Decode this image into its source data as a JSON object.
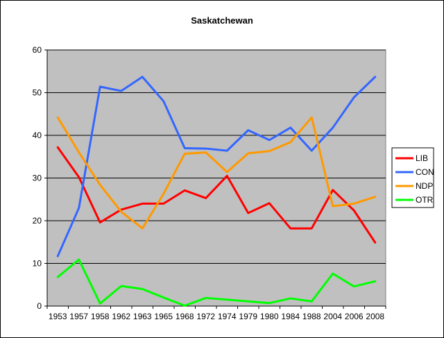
{
  "chart_data": {
    "type": "line",
    "title": "Saskatchewan",
    "xlabel": "",
    "ylabel": "",
    "ylim": [
      0,
      60
    ],
    "yticks": [
      0,
      10,
      20,
      30,
      40,
      50,
      60
    ],
    "grid": true,
    "plot_background": "#c0c0c0",
    "legend_position": "right",
    "categories": [
      "1953",
      "1957",
      "1958",
      "1962",
      "1963",
      "1965",
      "1968",
      "1972",
      "1974",
      "1979",
      "1980",
      "1984",
      "1988",
      "2004",
      "2006",
      "2008"
    ],
    "series": [
      {
        "name": "LIB",
        "color": "#ff0000",
        "values": [
          37.2,
          30.2,
          19.6,
          22.6,
          24.0,
          24.0,
          27.1,
          25.3,
          30.5,
          21.8,
          24.1,
          18.2,
          18.2,
          27.2,
          22.4,
          14.9
        ]
      },
      {
        "name": "CON",
        "color": "#3366ff",
        "values": [
          11.7,
          23.0,
          51.4,
          50.4,
          53.7,
          48.0,
          37.0,
          36.9,
          36.4,
          41.2,
          38.9,
          41.8,
          36.4,
          41.8,
          48.9,
          53.7
        ]
      },
      {
        "name": "NDP",
        "color": "#ff9900",
        "values": [
          44.2,
          36.0,
          28.4,
          22.1,
          18.2,
          26.3,
          35.7,
          36.0,
          31.4,
          35.8,
          36.3,
          38.4,
          44.2,
          23.4,
          24.0,
          25.6
        ]
      },
      {
        "name": "OTR",
        "color": "#00ff00",
        "values": [
          6.8,
          10.9,
          0.6,
          4.7,
          4.0,
          2.0,
          0.1,
          1.9,
          1.5,
          1.1,
          0.7,
          1.8,
          1.1,
          7.6,
          4.6,
          5.8
        ]
      }
    ]
  }
}
